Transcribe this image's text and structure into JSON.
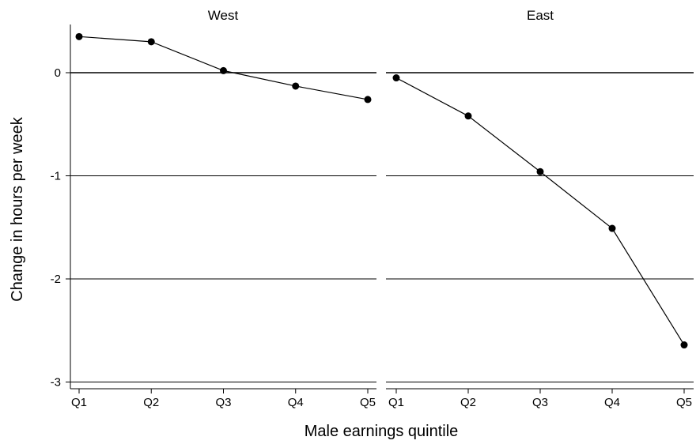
{
  "chart_data": {
    "type": "line",
    "xlabel": "Male earnings quintile",
    "ylabel": "Change in hours per week",
    "categories": [
      "Q1",
      "Q2",
      "Q3",
      "Q4",
      "Q5"
    ],
    "y_ticks": [
      0,
      -1,
      -2,
      -3
    ],
    "y_tick_labels": [
      "0",
      "-1",
      "-2",
      "-3"
    ],
    "ylim": [
      -3.05,
      0.4
    ],
    "grid": true,
    "panels": [
      {
        "title": "West",
        "values": [
          0.35,
          0.3,
          0.02,
          -0.13,
          -0.26
        ]
      },
      {
        "title": "East",
        "values": [
          -0.05,
          -0.42,
          -0.96,
          -1.51,
          -2.64
        ]
      }
    ]
  }
}
